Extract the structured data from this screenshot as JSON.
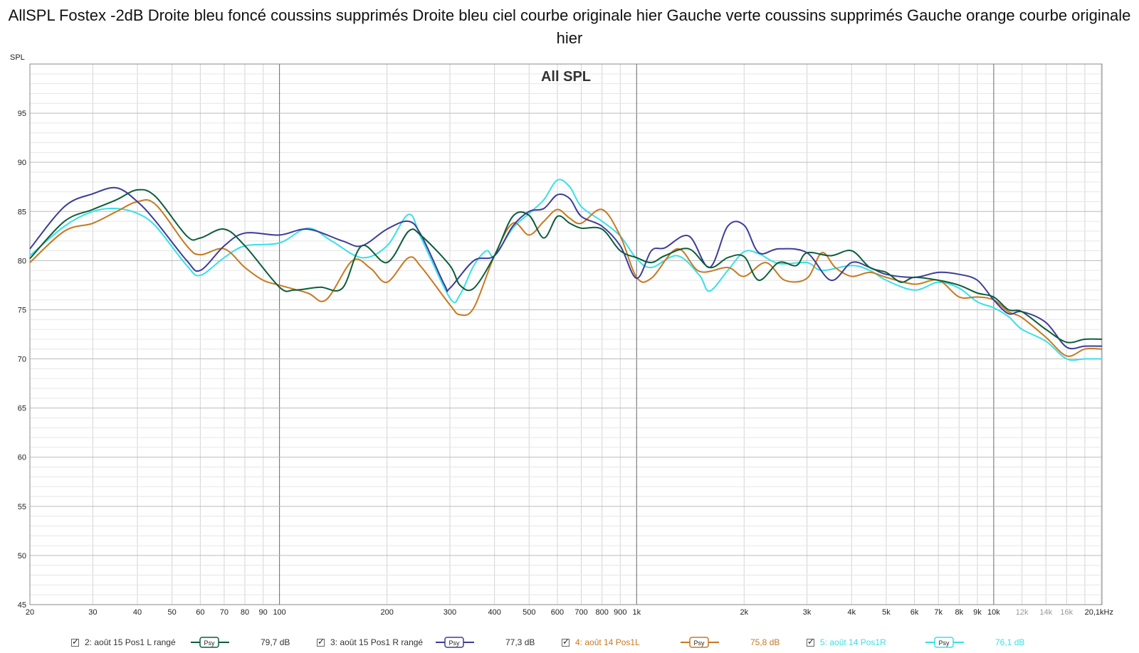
{
  "title": "AllSPL Fostex -2dB Droite bleu foncé coussins supprimés Droite bleu ciel courbe originale hier Gauche verte coussins supprimés Gauche orange courbe originale hier",
  "chart_data": {
    "type": "line",
    "inner_title": "All SPL",
    "ylabel": "SPL",
    "xscale": "log",
    "xlim": [
      20,
      20100
    ],
    "ylim": [
      45,
      100
    ],
    "y_ticks": [
      45,
      50,
      55,
      60,
      65,
      70,
      75,
      80,
      85,
      90,
      95
    ],
    "x_ticks": [
      {
        "value": 20,
        "label": "20"
      },
      {
        "value": 30,
        "label": "30"
      },
      {
        "value": 40,
        "label": "40"
      },
      {
        "value": 50,
        "label": "50"
      },
      {
        "value": 60,
        "label": "60"
      },
      {
        "value": 70,
        "label": "70"
      },
      {
        "value": 80,
        "label": "80"
      },
      {
        "value": 90,
        "label": "90"
      },
      {
        "value": 100,
        "label": "100"
      },
      {
        "value": 200,
        "label": "200"
      },
      {
        "value": 300,
        "label": "300"
      },
      {
        "value": 400,
        "label": "400"
      },
      {
        "value": 500,
        "label": "500"
      },
      {
        "value": 600,
        "label": "600"
      },
      {
        "value": 700,
        "label": "700"
      },
      {
        "value": 800,
        "label": "800"
      },
      {
        "value": 900,
        "label": "900"
      },
      {
        "value": 1000,
        "label": "1k"
      },
      {
        "value": 2000,
        "label": "2k"
      },
      {
        "value": 3000,
        "label": "3k"
      },
      {
        "value": 4000,
        "label": "4k"
      },
      {
        "value": 5000,
        "label": "5k"
      },
      {
        "value": 6000,
        "label": "6k"
      },
      {
        "value": 7000,
        "label": "7k"
      },
      {
        "value": 8000,
        "label": "8k"
      },
      {
        "value": 9000,
        "label": "9k"
      },
      {
        "value": 10000,
        "label": "10k"
      },
      {
        "value": 12000,
        "label": "12k"
      },
      {
        "value": 14000,
        "label": "14k"
      },
      {
        "value": 16000,
        "label": "16k"
      },
      {
        "value": 20100,
        "label": "20,1kHz"
      }
    ],
    "grid": true,
    "series": [
      {
        "name": "2: août 15 Pos1 L rangé",
        "avg": "79,7 dB",
        "color": "#0b5e3a",
        "points": [
          [
            20,
            80.2
          ],
          [
            25,
            84
          ],
          [
            30,
            85.2
          ],
          [
            35,
            86.2
          ],
          [
            40,
            87.2
          ],
          [
            45,
            86.5
          ],
          [
            55,
            82.5
          ],
          [
            60,
            82.3
          ],
          [
            70,
            83.2
          ],
          [
            80,
            81.5
          ],
          [
            100,
            77.3
          ],
          [
            110,
            77
          ],
          [
            130,
            77.3
          ],
          [
            150,
            77.2
          ],
          [
            170,
            81.5
          ],
          [
            200,
            79.8
          ],
          [
            230,
            83
          ],
          [
            250,
            82.5
          ],
          [
            300,
            79.5
          ],
          [
            320,
            77.5
          ],
          [
            350,
            77.2
          ],
          [
            400,
            80.5
          ],
          [
            450,
            84.5
          ],
          [
            500,
            84.6
          ],
          [
            550,
            82.3
          ],
          [
            600,
            84.5
          ],
          [
            650,
            83.8
          ],
          [
            700,
            83.3
          ],
          [
            800,
            83.2
          ],
          [
            900,
            81
          ],
          [
            1000,
            80.3
          ],
          [
            1100,
            79.8
          ],
          [
            1200,
            80.5
          ],
          [
            1400,
            81.2
          ],
          [
            1600,
            79.3
          ],
          [
            1800,
            80.3
          ],
          [
            2000,
            80.4
          ],
          [
            2200,
            78
          ],
          [
            2500,
            79.8
          ],
          [
            2800,
            79.5
          ],
          [
            3000,
            80.8
          ],
          [
            3500,
            80.5
          ],
          [
            4000,
            81
          ],
          [
            4500,
            79.3
          ],
          [
            5000,
            78.8
          ],
          [
            5500,
            77.8
          ],
          [
            6000,
            78.3
          ],
          [
            7000,
            78
          ],
          [
            8000,
            77.5
          ],
          [
            9000,
            76.7
          ],
          [
            10000,
            76.3
          ],
          [
            11000,
            75
          ],
          [
            12000,
            74.8
          ],
          [
            14000,
            73
          ],
          [
            16000,
            71.7
          ],
          [
            18000,
            72
          ],
          [
            20100,
            72
          ]
        ]
      },
      {
        "name": "3: août 15 Pos1 R rangé",
        "avg": "77,3 dB",
        "color": "#3c3c99",
        "points": [
          [
            20,
            81.2
          ],
          [
            25,
            85.5
          ],
          [
            30,
            86.8
          ],
          [
            35,
            87.4
          ],
          [
            40,
            86
          ],
          [
            45,
            84
          ],
          [
            55,
            80
          ],
          [
            60,
            79
          ],
          [
            70,
            81.5
          ],
          [
            80,
            82.8
          ],
          [
            100,
            82.6
          ],
          [
            120,
            83.2
          ],
          [
            150,
            82
          ],
          [
            170,
            81.5
          ],
          [
            200,
            83.2
          ],
          [
            230,
            84
          ],
          [
            250,
            82.5
          ],
          [
            290,
            77.5
          ],
          [
            300,
            77.2
          ],
          [
            350,
            80
          ],
          [
            400,
            80.5
          ],
          [
            450,
            83.5
          ],
          [
            500,
            85
          ],
          [
            550,
            85.3
          ],
          [
            600,
            86.7
          ],
          [
            650,
            86.3
          ],
          [
            700,
            84.5
          ],
          [
            800,
            83.5
          ],
          [
            900,
            81.5
          ],
          [
            1000,
            78.2
          ],
          [
            1100,
            81
          ],
          [
            1200,
            81.3
          ],
          [
            1400,
            82.5
          ],
          [
            1600,
            79.3
          ],
          [
            1800,
            83.5
          ],
          [
            2000,
            83.6
          ],
          [
            2200,
            80.8
          ],
          [
            2500,
            81.2
          ],
          [
            3000,
            80.8
          ],
          [
            3500,
            78
          ],
          [
            4000,
            79.8
          ],
          [
            4500,
            79.3
          ],
          [
            5000,
            78.6
          ],
          [
            6000,
            78.3
          ],
          [
            7000,
            78.8
          ],
          [
            8000,
            78.6
          ],
          [
            9000,
            78
          ],
          [
            10000,
            76
          ],
          [
            11000,
            74.6
          ],
          [
            12000,
            74.8
          ],
          [
            14000,
            73.7
          ],
          [
            16000,
            71.2
          ],
          [
            18000,
            71.3
          ],
          [
            20100,
            71.3
          ]
        ]
      },
      {
        "name": "4: août 14 Pos1L",
        "avg": "75,8 dB",
        "color": "#c87820",
        "points": [
          [
            20,
            79.8
          ],
          [
            25,
            83
          ],
          [
            30,
            83.8
          ],
          [
            35,
            85
          ],
          [
            40,
            86
          ],
          [
            45,
            85.7
          ],
          [
            55,
            81.5
          ],
          [
            60,
            80.6
          ],
          [
            70,
            81.2
          ],
          [
            80,
            79.3
          ],
          [
            90,
            78
          ],
          [
            100,
            77.5
          ],
          [
            120,
            76.7
          ],
          [
            135,
            76
          ],
          [
            160,
            80
          ],
          [
            180,
            79.2
          ],
          [
            200,
            77.8
          ],
          [
            230,
            80.3
          ],
          [
            250,
            79.3
          ],
          [
            300,
            75.5
          ],
          [
            320,
            74.5
          ],
          [
            350,
            75.2
          ],
          [
            400,
            80.5
          ],
          [
            450,
            83.8
          ],
          [
            500,
            82.6
          ],
          [
            550,
            84
          ],
          [
            600,
            85.2
          ],
          [
            650,
            84.3
          ],
          [
            700,
            83.8
          ],
          [
            800,
            85.2
          ],
          [
            900,
            82.5
          ],
          [
            1000,
            78.3
          ],
          [
            1100,
            78.2
          ],
          [
            1300,
            81.2
          ],
          [
            1500,
            78.9
          ],
          [
            1800,
            79.3
          ],
          [
            2000,
            78.4
          ],
          [
            2300,
            79.8
          ],
          [
            2600,
            78
          ],
          [
            3000,
            78.2
          ],
          [
            3300,
            80.8
          ],
          [
            3600,
            79.3
          ],
          [
            4000,
            78.4
          ],
          [
            4500,
            78.8
          ],
          [
            5000,
            78.3
          ],
          [
            6000,
            77.6
          ],
          [
            7000,
            78
          ],
          [
            8000,
            76.3
          ],
          [
            9000,
            76.3
          ],
          [
            10000,
            76
          ],
          [
            11000,
            74.8
          ],
          [
            12000,
            74.2
          ],
          [
            14000,
            72.2
          ],
          [
            16000,
            70.3
          ],
          [
            18000,
            71
          ],
          [
            20100,
            71
          ]
        ]
      },
      {
        "name": "5: août 14 Pos1R",
        "avg": "76,1 dB",
        "color": "#38e0e8",
        "points": [
          [
            20,
            80.5
          ],
          [
            25,
            83.5
          ],
          [
            30,
            85
          ],
          [
            35,
            85.3
          ],
          [
            40,
            84.8
          ],
          [
            45,
            83.5
          ],
          [
            55,
            79.5
          ],
          [
            60,
            78.5
          ],
          [
            70,
            80.3
          ],
          [
            80,
            81.5
          ],
          [
            100,
            81.8
          ],
          [
            120,
            83.3
          ],
          [
            140,
            82
          ],
          [
            170,
            80.3
          ],
          [
            200,
            81.5
          ],
          [
            230,
            84.7
          ],
          [
            250,
            82.2
          ],
          [
            300,
            76.2
          ],
          [
            320,
            76.5
          ],
          [
            350,
            79.5
          ],
          [
            380,
            81
          ],
          [
            400,
            80.5
          ],
          [
            450,
            83.3
          ],
          [
            500,
            84.8
          ],
          [
            550,
            86.2
          ],
          [
            600,
            88.2
          ],
          [
            650,
            87.5
          ],
          [
            700,
            85.5
          ],
          [
            800,
            84
          ],
          [
            900,
            82.5
          ],
          [
            1000,
            80.2
          ],
          [
            1100,
            79.3
          ],
          [
            1300,
            80.5
          ],
          [
            1500,
            78.5
          ],
          [
            1600,
            76.9
          ],
          [
            1800,
            79
          ],
          [
            2000,
            80.9
          ],
          [
            2200,
            80.7
          ],
          [
            2500,
            79.7
          ],
          [
            3000,
            79.8
          ],
          [
            3300,
            79
          ],
          [
            4000,
            79.5
          ],
          [
            4500,
            79
          ],
          [
            5000,
            78
          ],
          [
            6000,
            77
          ],
          [
            7000,
            77.8
          ],
          [
            8000,
            77.2
          ],
          [
            9000,
            75.8
          ],
          [
            10000,
            75.2
          ],
          [
            11000,
            74.3
          ],
          [
            12000,
            73
          ],
          [
            14000,
            71.8
          ],
          [
            16000,
            70
          ],
          [
            18000,
            70
          ],
          [
            20100,
            70
          ]
        ]
      }
    ]
  },
  "legend": {
    "psy_label": "Psy",
    "items": [
      {
        "label": "2: août 15 Pos1 L rangé",
        "value": "79,7 dB",
        "color": "#0b5e3a"
      },
      {
        "label": "3: août 15 Pos1 R rangé",
        "value": "77,3 dB",
        "color": "#3c3c99"
      },
      {
        "label": "4: août 14 Pos1L",
        "value": "75,8 dB",
        "color": "#c87820"
      },
      {
        "label": "5: août 14 Pos1R",
        "value": "76,1 dB",
        "color": "#38e0e8"
      }
    ]
  }
}
